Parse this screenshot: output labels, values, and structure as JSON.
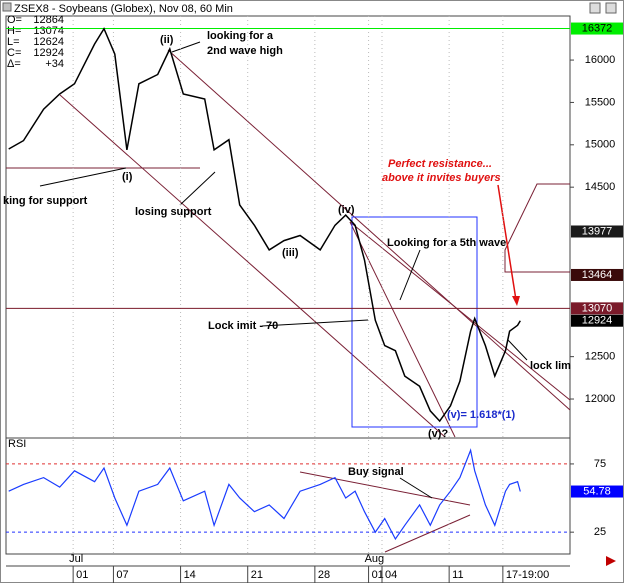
{
  "header": {
    "title": "ZSEX8 - Soybeans (Globex), Nov 08, 60 Min",
    "info": [
      {
        "label": "O=",
        "value": "12864"
      },
      {
        "label": "H=",
        "value": "13074"
      },
      {
        "label": "L=",
        "value": "12624"
      },
      {
        "label": "C=",
        "value": "12924"
      },
      {
        "label": "Δ=",
        "value": "+34"
      }
    ]
  },
  "chart_data": [
    {
      "type": "line",
      "x": [
        -4.8,
        -3.7,
        -2.2,
        -1.0,
        0.1,
        1.6,
        2.3,
        3.1,
        4.0,
        4.9,
        6.3,
        7.2,
        8.2,
        9.8,
        10.5,
        11.6,
        12.4,
        13.5,
        14.6,
        15.7,
        16.9,
        18.4,
        19.5,
        20.3,
        21.0,
        21.7,
        22.5,
        23.2,
        24.0,
        24.7,
        25.8,
        26.6,
        27.3,
        28.1,
        28.8,
        29.6,
        29.9,
        30.7,
        31.4,
        32.2,
        32.5,
        33.1,
        33.3
      ],
      "series": [
        {
          "color": "#000000",
          "values": [
            14950,
            15050,
            15420,
            15600,
            15720,
            16190,
            16370,
            16070,
            14940,
            15720,
            15830,
            16130,
            15600,
            15540,
            14940,
            15060,
            14290,
            14050,
            13760,
            13870,
            13930,
            13760,
            14050,
            14170,
            14050,
            13640,
            12930,
            12630,
            12570,
            12270,
            12150,
            11860,
            11740,
            11920,
            12210,
            12800,
            12950,
            12630,
            12270,
            12570,
            12800,
            12870,
            12924
          ]
        }
      ],
      "xlim": [
        -5,
        37
      ],
      "ylim": [
        11540,
        16520
      ],
      "yticks": [
        12000,
        12500,
        14500,
        15000,
        15500,
        16000
      ],
      "xticks": [
        {
          "value": 0,
          "label": "01"
        },
        {
          "value": 3,
          "label": "07"
        },
        {
          "value": 8,
          "label": "14"
        },
        {
          "value": 13,
          "label": "21"
        },
        {
          "value": 18,
          "label": "28"
        },
        {
          "value": 22,
          "label": "01"
        },
        {
          "value": 23,
          "label": "04"
        },
        {
          "value": 28,
          "label": "11"
        },
        {
          "value": 32,
          "label": "17-19:00"
        }
      ],
      "months": [
        {
          "value": 0,
          "label": "Jul"
        },
        {
          "value": 22,
          "label": "Aug"
        }
      ],
      "levels": [
        {
          "value": 16372,
          "color": "#00ee00",
          "line": true
        },
        {
          "value": 13977,
          "color": "#1a1a1a",
          "line": false
        },
        {
          "value": 13464,
          "color": "#3a0a0a",
          "line": false
        },
        {
          "value": 13070,
          "color": "#7a1a2a",
          "line": true
        },
        {
          "value": 12924,
          "color": "#000000",
          "line": false
        }
      ],
      "annotations": [
        "(i)",
        "(ii)",
        "(iii)",
        "(iv)",
        "(v)?",
        "looking for a",
        "2nd wave high",
        "king for support",
        "losing support",
        "Looking for a 5th wave",
        "Lock imit - 70",
        "(v)= 1.618*(1)",
        "Perfect resistance...",
        "above it invites buyers",
        "lock lim"
      ]
    },
    {
      "type": "line",
      "title": "RSI",
      "x": [
        -4.8,
        -3.7,
        -2.2,
        -1.0,
        0.1,
        1.6,
        2.3,
        3.1,
        4.0,
        4.9,
        6.3,
        7.2,
        8.2,
        9.8,
        10.5,
        11.6,
        12.4,
        13.5,
        14.6,
        15.7,
        16.9,
        18.4,
        19.5,
        20.3,
        21.0,
        21.7,
        22.5,
        23.2,
        24.0,
        24.7,
        25.8,
        26.6,
        27.3,
        28.1,
        28.8,
        29.6,
        29.9,
        30.7,
        31.4,
        32.2,
        32.5,
        33.1,
        33.3
      ],
      "series": [
        {
          "color": "#1a3cff",
          "values": [
            55,
            60,
            65,
            58,
            70,
            62,
            72,
            50,
            30,
            55,
            60,
            72,
            48,
            55,
            30,
            60,
            50,
            40,
            45,
            35,
            55,
            60,
            65,
            50,
            55,
            40,
            25,
            35,
            20,
            30,
            45,
            30,
            45,
            55,
            65,
            85,
            70,
            45,
            30,
            55,
            60,
            62,
            54.78
          ]
        }
      ],
      "xlim": [
        -5,
        37
      ],
      "ylim": [
        9,
        94
      ],
      "yticks": [
        25,
        75
      ],
      "tick_colors": [
        "#2030ff",
        "#e03030"
      ],
      "last": {
        "value": 54.78,
        "color": "#0000ff"
      },
      "annotations": [
        "Buy signal"
      ]
    }
  ]
}
